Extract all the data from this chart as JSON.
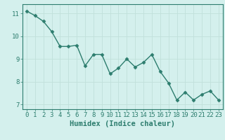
{
  "x": [
    0,
    1,
    2,
    3,
    4,
    5,
    6,
    7,
    8,
    9,
    10,
    11,
    12,
    13,
    14,
    15,
    16,
    17,
    18,
    19,
    20,
    21,
    22,
    23
  ],
  "y": [
    11.1,
    10.9,
    10.65,
    10.2,
    9.55,
    9.55,
    9.6,
    8.7,
    9.2,
    9.2,
    8.35,
    8.6,
    9.0,
    8.65,
    8.85,
    9.2,
    8.45,
    7.95,
    7.2,
    7.55,
    7.2,
    7.45,
    7.6,
    7.2
  ],
  "line_color": "#2d7d6e",
  "marker": "D",
  "markersize": 2.5,
  "linewidth": 1.0,
  "xlabel": "Humidex (Indice chaleur)",
  "xlim": [
    -0.5,
    23.5
  ],
  "ylim": [
    6.8,
    11.4
  ],
  "yticks": [
    7,
    8,
    9,
    10,
    11
  ],
  "xticks": [
    0,
    1,
    2,
    3,
    4,
    5,
    6,
    7,
    8,
    9,
    10,
    11,
    12,
    13,
    14,
    15,
    16,
    17,
    18,
    19,
    20,
    21,
    22,
    23
  ],
  "background_color": "#d4f0ed",
  "grid_color": "#c0e0db",
  "tick_color": "#2d7d6e",
  "xlabel_color": "#2d7d6e",
  "xlabel_fontsize": 7.5,
  "tick_fontsize": 6.5
}
